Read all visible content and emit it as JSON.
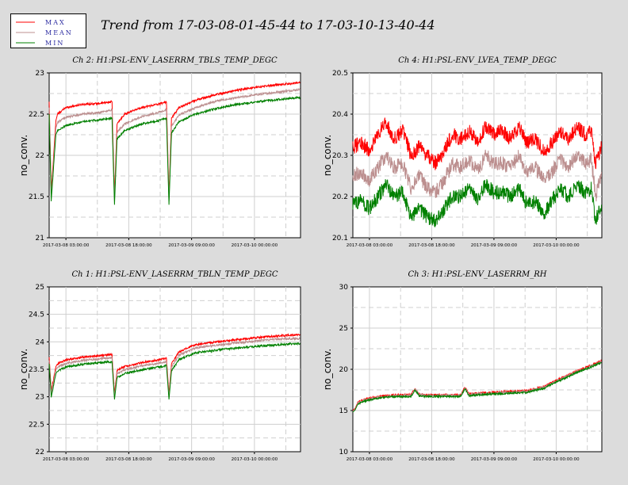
{
  "title": "Trend from 17-03-08-01-45-44 to 17-03-10-13-40-44",
  "legend": [
    {
      "name": "MAX",
      "color": "#ff0000"
    },
    {
      "name": "MEAN",
      "color": "#bc8f8f"
    },
    {
      "name": "MIN",
      "color": "#008000"
    }
  ],
  "chart_data": [
    {
      "type": "line",
      "title": "Ch 2: H1:PSL-ENV_LASERRM_TBLS_TEMP_DEGC",
      "ylabel": "no_conv.",
      "ylim": [
        21,
        23
      ],
      "yticks": [
        "21",
        "21.5",
        "22",
        "22.5",
        "23"
      ],
      "xticks": [
        "2017-03-08 03:00:00",
        "2017-03-08 18:00:00",
        "2017-03-09 09:00:00",
        "2017-03-10 00:00:00"
      ],
      "series": [
        {
          "name": "MAX",
          "x": [
            0,
            0.5,
            1.6,
            2,
            4,
            8,
            12,
            15,
            15.6,
            16.2,
            18,
            22,
            26,
            28,
            28.6,
            29.2,
            31,
            35,
            40,
            45,
            50,
            55,
            59.9
          ],
          "y": [
            22.65,
            21.55,
            22.42,
            22.5,
            22.58,
            22.62,
            22.63,
            22.65,
            21.5,
            22.38,
            22.5,
            22.58,
            22.62,
            22.65,
            21.5,
            22.45,
            22.58,
            22.67,
            22.74,
            22.79,
            22.83,
            22.86,
            22.88
          ]
        },
        {
          "name": "MEAN",
          "x": [
            0,
            0.5,
            1.6,
            2,
            4,
            8,
            12,
            15,
            15.6,
            16.2,
            18,
            22,
            26,
            28,
            28.6,
            29.2,
            31,
            35,
            40,
            45,
            50,
            55,
            59.9
          ],
          "y": [
            22.58,
            21.5,
            22.33,
            22.4,
            22.46,
            22.5,
            22.52,
            22.55,
            21.45,
            22.28,
            22.38,
            22.47,
            22.52,
            22.55,
            21.45,
            22.35,
            22.49,
            22.58,
            22.66,
            22.7,
            22.74,
            22.77,
            22.8
          ]
        },
        {
          "name": "MIN",
          "x": [
            0,
            0.5,
            1.6,
            2,
            4,
            8,
            12,
            15,
            15.6,
            16.2,
            18,
            22,
            26,
            28,
            28.6,
            29.2,
            31,
            35,
            40,
            45,
            50,
            55,
            59.9
          ],
          "y": [
            22.5,
            21.45,
            22.25,
            22.3,
            22.36,
            22.41,
            22.43,
            22.45,
            21.4,
            22.2,
            22.3,
            22.38,
            22.42,
            22.45,
            21.4,
            22.27,
            22.41,
            22.5,
            22.57,
            22.62,
            22.65,
            22.68,
            22.7
          ]
        }
      ]
    },
    {
      "type": "line",
      "title": "Ch 4: H1:PSL-ENV_LVEA_TEMP_DEGC",
      "ylabel": "no_conv.",
      "ylim": [
        20.1,
        20.5
      ],
      "yticks": [
        "20.1",
        "20.2",
        "20.3",
        "20.4",
        "20.5"
      ],
      "xticks": [
        "2017-03-08 03:00:00",
        "2017-03-08 18:00:00",
        "2017-03-09 09:00:00",
        "2017-03-10 00:00:00"
      ],
      "series": [
        {
          "name": "MAX",
          "x": [
            0,
            2,
            4,
            6,
            8,
            10,
            12,
            14,
            16,
            18,
            20,
            22,
            24,
            26,
            28,
            30,
            32,
            34,
            36,
            38,
            40,
            42,
            44,
            46,
            48,
            50,
            52,
            54,
            56,
            57.5,
            58.5,
            59.9
          ],
          "y": [
            20.32,
            20.33,
            20.31,
            20.35,
            20.38,
            20.34,
            20.36,
            20.3,
            20.32,
            20.3,
            20.28,
            20.31,
            20.35,
            20.34,
            20.36,
            20.33,
            20.37,
            20.35,
            20.36,
            20.34,
            20.37,
            20.33,
            20.34,
            20.31,
            20.33,
            20.36,
            20.34,
            20.37,
            20.35,
            20.36,
            20.28,
            20.32
          ]
        },
        {
          "name": "MEAN",
          "x": [
            0,
            2,
            4,
            6,
            8,
            10,
            12,
            14,
            16,
            18,
            20,
            22,
            24,
            26,
            28,
            30,
            32,
            34,
            36,
            38,
            40,
            42,
            44,
            46,
            48,
            50,
            52,
            54,
            56,
            57.5,
            58.5,
            59.9
          ],
          "y": [
            20.25,
            20.26,
            20.24,
            20.27,
            20.3,
            20.27,
            20.28,
            20.22,
            20.25,
            20.22,
            20.21,
            20.24,
            20.28,
            20.27,
            20.29,
            20.26,
            20.3,
            20.28,
            20.28,
            20.27,
            20.3,
            20.26,
            20.27,
            20.24,
            20.26,
            20.29,
            20.27,
            20.3,
            20.28,
            20.29,
            20.2,
            20.26
          ]
        },
        {
          "name": "MIN",
          "x": [
            0,
            2,
            4,
            6,
            8,
            10,
            12,
            14,
            16,
            18,
            20,
            22,
            24,
            26,
            28,
            30,
            32,
            34,
            36,
            38,
            40,
            42,
            44,
            46,
            48,
            50,
            52,
            54,
            56,
            57.5,
            58.5,
            59.9
          ],
          "y": [
            20.18,
            20.19,
            20.17,
            20.2,
            20.23,
            20.2,
            20.21,
            20.15,
            20.17,
            20.15,
            20.14,
            20.17,
            20.2,
            20.2,
            20.22,
            20.19,
            20.23,
            20.21,
            20.21,
            20.2,
            20.22,
            20.18,
            20.19,
            20.16,
            20.19,
            20.22,
            20.2,
            20.23,
            20.21,
            20.22,
            20.14,
            20.18
          ]
        }
      ]
    },
    {
      "type": "line",
      "title": "Ch 1: H1:PSL-ENV_LASERRM_TBLN_TEMP_DEGC",
      "ylabel": "no_conv.",
      "ylim": [
        22,
        25
      ],
      "yticks": [
        "22",
        "22.5",
        "23",
        "23.5",
        "24",
        "24.5",
        "25"
      ],
      "xticks": [
        "2017-03-08 03:00:00",
        "2017-03-08 18:00:00",
        "2017-03-09 09:00:00",
        "2017-03-10 00:00:00"
      ],
      "series": [
        {
          "name": "MAX",
          "x": [
            0,
            0.5,
            1.6,
            2,
            4,
            8,
            12,
            15,
            15.6,
            16.2,
            18,
            22,
            26,
            28,
            28.6,
            29.2,
            31,
            35,
            40,
            45,
            50,
            55,
            59.9
          ],
          "y": [
            23.72,
            23.1,
            23.55,
            23.6,
            23.67,
            23.72,
            23.75,
            23.77,
            23.05,
            23.48,
            23.55,
            23.62,
            23.67,
            23.7,
            23.05,
            23.6,
            23.82,
            23.95,
            24.0,
            24.04,
            24.08,
            24.11,
            24.13
          ]
        },
        {
          "name": "MEAN",
          "x": [
            0,
            0.5,
            1.6,
            2,
            4,
            8,
            12,
            15,
            15.6,
            16.2,
            18,
            22,
            26,
            28,
            28.6,
            29.2,
            31,
            35,
            40,
            45,
            50,
            55,
            59.9
          ],
          "y": [
            23.66,
            23.05,
            23.49,
            23.54,
            23.61,
            23.66,
            23.69,
            23.71,
            23.0,
            23.42,
            23.49,
            23.56,
            23.61,
            23.64,
            23.0,
            23.54,
            23.76,
            23.89,
            23.94,
            23.98,
            24.02,
            24.05,
            24.06
          ]
        },
        {
          "name": "MIN",
          "x": [
            0,
            0.5,
            1.6,
            2,
            4,
            8,
            12,
            15,
            15.6,
            16.2,
            18,
            22,
            26,
            28,
            28.6,
            29.2,
            31,
            35,
            40,
            45,
            50,
            55,
            59.9
          ],
          "y": [
            23.6,
            23.0,
            23.42,
            23.47,
            23.54,
            23.59,
            23.62,
            23.64,
            22.95,
            23.35,
            23.42,
            23.49,
            23.54,
            23.57,
            22.95,
            23.47,
            23.68,
            23.8,
            23.85,
            23.89,
            23.92,
            23.95,
            23.97
          ]
        }
      ]
    },
    {
      "type": "line",
      "title": "Ch 3: H1:PSL-ENV_LASERRM_RH",
      "ylabel": "no_conv.",
      "ylim": [
        10,
        30
      ],
      "yticks": [
        "10",
        "15",
        "20",
        "25",
        "30"
      ],
      "xticks": [
        "2017-03-08 03:00:00",
        "2017-03-08 18:00:00",
        "2017-03-09 09:00:00",
        "2017-03-10 00:00:00"
      ],
      "series": [
        {
          "name": "MAX",
          "x": [
            0,
            0.6,
            1.2,
            2.5,
            5,
            8,
            11,
            14,
            15,
            16,
            18,
            22,
            26,
            27,
            28,
            30,
            34,
            38,
            42,
            46,
            48,
            51,
            54,
            57,
            59.9
          ],
          "y": [
            15.0,
            15.3,
            16.0,
            16.3,
            16.6,
            16.8,
            16.9,
            16.9,
            17.7,
            17.0,
            16.9,
            16.9,
            16.9,
            17.8,
            17.0,
            17.1,
            17.2,
            17.3,
            17.4,
            17.9,
            18.4,
            19.1,
            19.8,
            20.4,
            21.0
          ]
        },
        {
          "name": "MEAN",
          "x": [
            0,
            0.6,
            1.2,
            2.5,
            5,
            8,
            11,
            14,
            15,
            16,
            18,
            22,
            26,
            27,
            28,
            30,
            34,
            38,
            42,
            46,
            48,
            51,
            54,
            57,
            59.9
          ],
          "y": [
            14.9,
            15.2,
            15.9,
            16.2,
            16.5,
            16.7,
            16.8,
            16.8,
            17.6,
            16.9,
            16.8,
            16.8,
            16.8,
            17.7,
            16.9,
            17.0,
            17.1,
            17.2,
            17.3,
            17.8,
            18.3,
            19.0,
            19.7,
            20.3,
            20.9
          ]
        },
        {
          "name": "MIN",
          "x": [
            0,
            0.6,
            1.2,
            2.5,
            5,
            8,
            11,
            14,
            15,
            16,
            18,
            22,
            26,
            27,
            28,
            30,
            34,
            38,
            42,
            46,
            48,
            51,
            54,
            57,
            59.9
          ],
          "y": [
            14.8,
            15.1,
            15.8,
            16.1,
            16.4,
            16.6,
            16.7,
            16.7,
            17.5,
            16.8,
            16.7,
            16.7,
            16.7,
            17.6,
            16.8,
            16.9,
            17.0,
            17.1,
            17.2,
            17.7,
            18.2,
            18.9,
            19.6,
            20.2,
            20.8
          ]
        }
      ]
    }
  ]
}
